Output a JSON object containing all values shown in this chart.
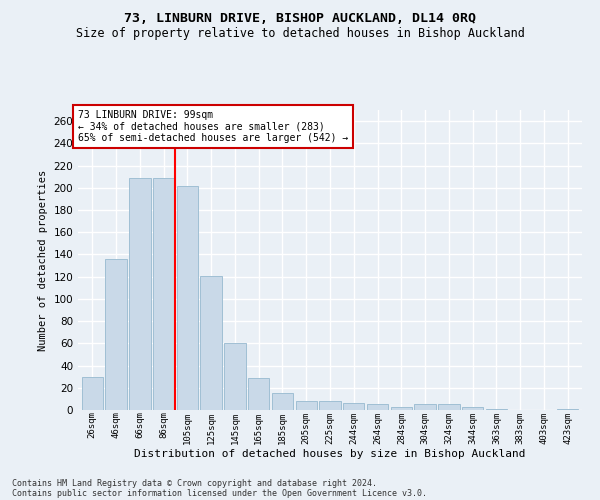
{
  "title1": "73, LINBURN DRIVE, BISHOP AUCKLAND, DL14 0RQ",
  "title2": "Size of property relative to detached houses in Bishop Auckland",
  "xlabel": "Distribution of detached houses by size in Bishop Auckland",
  "ylabel": "Number of detached properties",
  "categories": [
    "26sqm",
    "46sqm",
    "66sqm",
    "86sqm",
    "105sqm",
    "125sqm",
    "145sqm",
    "165sqm",
    "185sqm",
    "205sqm",
    "225sqm",
    "244sqm",
    "264sqm",
    "284sqm",
    "304sqm",
    "324sqm",
    "344sqm",
    "363sqm",
    "383sqm",
    "403sqm",
    "423sqm"
  ],
  "values": [
    30,
    136,
    209,
    209,
    202,
    121,
    60,
    29,
    15,
    8,
    8,
    6,
    5,
    3,
    5,
    5,
    3,
    1,
    0,
    0,
    1
  ],
  "bar_color": "#c9d9e8",
  "bar_edge_color": "#a0bfd4",
  "red_line_x": 3.5,
  "ylim": [
    0,
    270
  ],
  "yticks": [
    0,
    20,
    40,
    60,
    80,
    100,
    120,
    140,
    160,
    180,
    200,
    220,
    240,
    260
  ],
  "annotation_title": "73 LINBURN DRIVE: 99sqm",
  "annotation_line1": "← 34% of detached houses are smaller (283)",
  "annotation_line2": "65% of semi-detached houses are larger (542) →",
  "annotation_box_color": "#ffffff",
  "annotation_box_edge": "#cc0000",
  "footer1": "Contains HM Land Registry data © Crown copyright and database right 2024.",
  "footer2": "Contains public sector information licensed under the Open Government Licence v3.0.",
  "background_color": "#eaf0f6",
  "grid_color": "#ffffff"
}
